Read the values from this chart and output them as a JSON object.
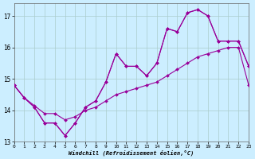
{
  "background_color": "#cceeff",
  "grid_color": "#aacccc",
  "line_color": "#990099",
  "xlim": [
    0,
    23
  ],
  "ylim": [
    13,
    17.4
  ],
  "yticks": [
    13,
    14,
    15,
    16,
    17
  ],
  "xticks": [
    0,
    1,
    2,
    3,
    4,
    5,
    6,
    7,
    8,
    9,
    10,
    11,
    12,
    13,
    14,
    15,
    16,
    17,
    18,
    19,
    20,
    21,
    22,
    23
  ],
  "xlabel": "Windchill (Refroidissement éolien,°C)",
  "series1_x": [
    0,
    1,
    2,
    3,
    4,
    5,
    6,
    7,
    8,
    9,
    10,
    11,
    12,
    13,
    14,
    15,
    16,
    17,
    18,
    19,
    20,
    21,
    22,
    23
  ],
  "series1_y": [
    14.8,
    14.4,
    14.1,
    13.6,
    13.6,
    13.2,
    13.6,
    14.1,
    14.3,
    14.9,
    15.8,
    15.4,
    15.4,
    15.1,
    15.5,
    16.6,
    16.5,
    17.1,
    17.2,
    17.0,
    16.2,
    16.2,
    16.2,
    15.4
  ],
  "series2_x": [
    0,
    1,
    2,
    3,
    4,
    5,
    6,
    7,
    8,
    9,
    10,
    11,
    12,
    13,
    14,
    15,
    16,
    17,
    18,
    19,
    20,
    21,
    22,
    23
  ],
  "series2_y": [
    14.8,
    14.4,
    14.15,
    13.9,
    13.9,
    13.7,
    13.8,
    14.0,
    14.1,
    14.3,
    14.5,
    14.6,
    14.7,
    14.8,
    14.9,
    15.1,
    15.3,
    15.5,
    15.7,
    15.8,
    15.9,
    16.0,
    16.0,
    14.8
  ],
  "series3_x": [
    0,
    1,
    2,
    3,
    4,
    5,
    6,
    7,
    8,
    9,
    10,
    11,
    12,
    13,
    14,
    15,
    16,
    17,
    18,
    19,
    20,
    21,
    22,
    23
  ],
  "series3_y": [
    14.8,
    14.4,
    14.1,
    13.6,
    13.6,
    13.2,
    13.6,
    14.1,
    14.3,
    14.9,
    15.8,
    15.4,
    15.4,
    15.1,
    15.5,
    16.6,
    16.5,
    17.1,
    17.2,
    17.0,
    16.2,
    16.2,
    16.2,
    15.4
  ]
}
